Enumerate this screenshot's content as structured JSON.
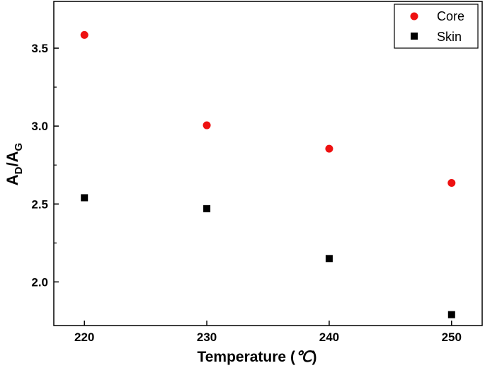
{
  "chart_data": {
    "type": "scatter",
    "title": "",
    "xlabel_main": "Temperature (",
    "xlabel_unit": "℃",
    "xlabel_close": ")",
    "ylabel": {
      "base1": "A",
      "sub1": "D",
      "slash": "/",
      "base2": "A",
      "sub2": "G"
    },
    "xlim": [
      217.5,
      252.5
    ],
    "ylim": [
      1.72,
      3.8
    ],
    "x_ticks": [
      "220",
      "230",
      "240",
      "250"
    ],
    "y_ticks": [
      "2.0",
      "2.5",
      "3.0",
      "3.5"
    ],
    "grid": false,
    "legend_position": "top-right",
    "x": [
      220,
      230,
      240,
      250
    ],
    "series": [
      {
        "name": "Core",
        "marker": "circle",
        "color": "#ee1111",
        "values": [
          3.585,
          3.005,
          2.855,
          2.635
        ]
      },
      {
        "name": "Skin",
        "marker": "square",
        "color": "#000000",
        "values": [
          2.54,
          2.47,
          2.15,
          1.79
        ]
      }
    ]
  }
}
